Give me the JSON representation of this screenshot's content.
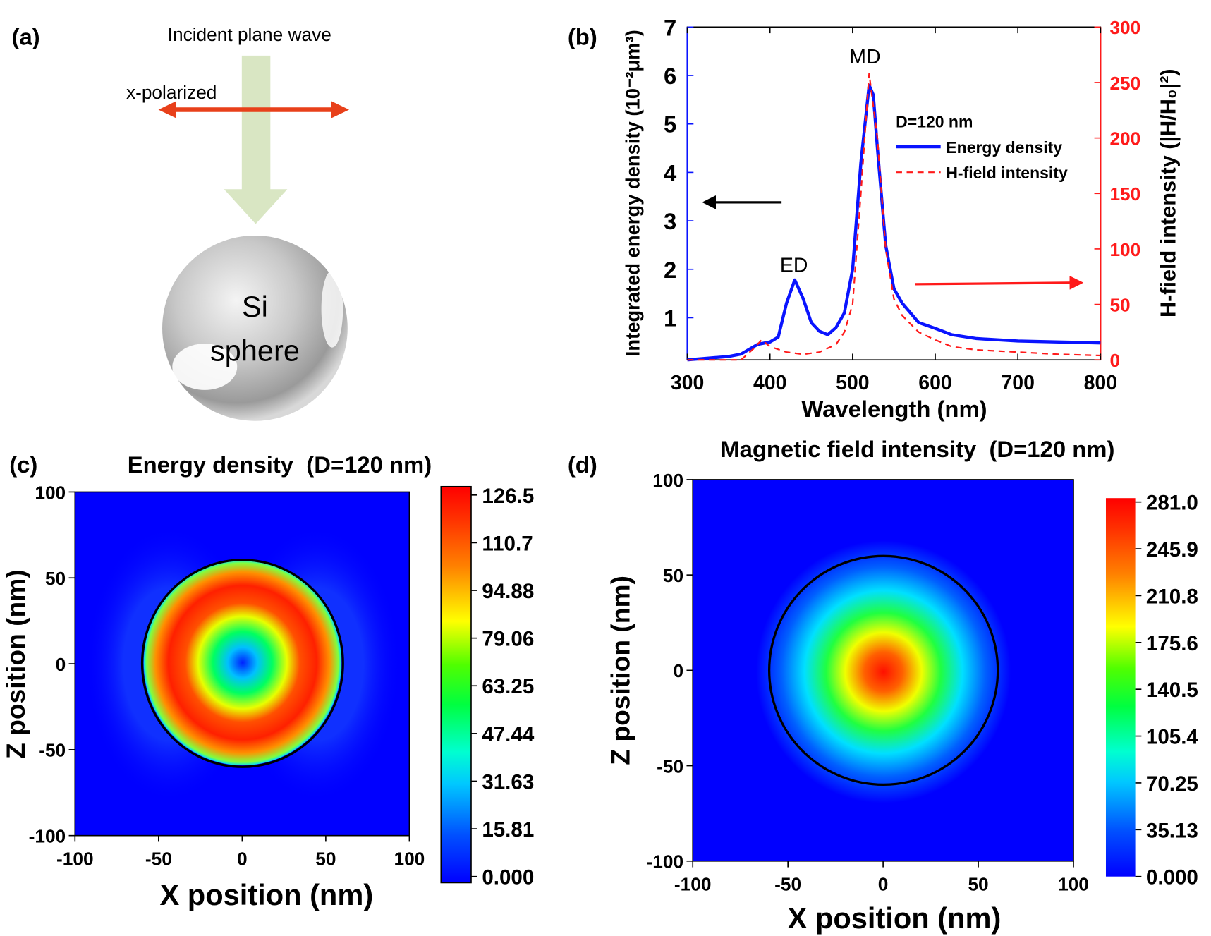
{
  "panel_a": {
    "label": "(a)",
    "incident": "Incident plane wave",
    "polarization": "x-polarized",
    "sphere_line1": "Si",
    "sphere_line2": "sphere"
  },
  "chart_data": [
    {
      "panel": "(b)",
      "type": "line",
      "xlabel": "Wavelength (nm)",
      "ylabel": "Integrated energy density (10⁻²μm³)",
      "y2label": "H-field intensity (|H/H₀|²)",
      "xlim": [
        300,
        800
      ],
      "ylim": [
        0.13,
        7
      ],
      "y2lim": [
        0,
        300
      ],
      "xticks": [
        "300",
        "400",
        "500",
        "600",
        "700",
        "800"
      ],
      "yticks": [
        "1",
        "2",
        "3",
        "4",
        "5",
        "6",
        "7"
      ],
      "y2ticks": [
        "0",
        "50",
        "100",
        "150",
        "200",
        "250",
        "300"
      ],
      "legend_title": "D=120 nm",
      "legend_position": "right",
      "annotations": [
        "ED",
        "MD"
      ],
      "series": [
        {
          "name": "Energy density",
          "axis": "left",
          "color": "#0a14ff",
          "x": [
            300,
            350,
            365,
            385,
            400,
            410,
            420,
            430,
            440,
            450,
            460,
            470,
            480,
            490,
            500,
            510,
            520,
            525,
            530,
            540,
            550,
            560,
            580,
            600,
            620,
            650,
            700,
            750,
            800
          ],
          "y": [
            0.13,
            0.2,
            0.25,
            0.45,
            0.5,
            0.6,
            1.3,
            1.78,
            1.4,
            0.9,
            0.72,
            0.65,
            0.8,
            1.1,
            2.0,
            4.2,
            5.8,
            5.6,
            4.5,
            2.5,
            1.6,
            1.3,
            0.9,
            0.78,
            0.65,
            0.57,
            0.52,
            0.5,
            0.48
          ]
        },
        {
          "name": "H-field intensity",
          "axis": "right",
          "color": "#ff1a1a",
          "x": [
            300,
            365,
            380,
            390,
            400,
            420,
            440,
            460,
            480,
            490,
            500,
            510,
            520,
            530,
            540,
            550,
            560,
            580,
            600,
            620,
            650,
            700,
            750,
            800
          ],
          "y": [
            0,
            0,
            10,
            18,
            12,
            7,
            5,
            7,
            14,
            25,
            50,
            150,
            258,
            200,
            100,
            55,
            40,
            25,
            18,
            12,
            9,
            7,
            5,
            4
          ]
        }
      ]
    },
    {
      "panel": "(c)",
      "type": "heatmap",
      "title": "Energy density  (D=120 nm)",
      "xlabel": "X position (nm)",
      "ylabel": "Z position (nm)",
      "xlim": [
        -100,
        100
      ],
      "ylim": [
        -100,
        100
      ],
      "xticks": [
        "-100",
        "-50",
        "0",
        "50",
        "100"
      ],
      "yticks": [
        "-100",
        "-50",
        "0",
        "50",
        "100"
      ],
      "colorbar": [
        "0.000",
        "15.81",
        "31.63",
        "47.44",
        "63.25",
        "79.06",
        "94.88",
        "110.7",
        "126.5"
      ],
      "sphere_radius_nm": 60
    },
    {
      "panel": "(d)",
      "type": "heatmap",
      "title": "Magnetic field intensity  (D=120 nm)",
      "xlabel": "X position (nm)",
      "ylabel": "Z position (nm)",
      "xlim": [
        -100,
        100
      ],
      "ylim": [
        -100,
        100
      ],
      "xticks": [
        "-100",
        "-50",
        "0",
        "50",
        "100"
      ],
      "yticks": [
        "-100",
        "-50",
        "0",
        "50",
        "100"
      ],
      "colorbar": [
        "0.000",
        "35.13",
        "70.25",
        "105.4",
        "140.5",
        "175.6",
        "210.8",
        "245.9",
        "281.0"
      ],
      "sphere_radius_nm": 60
    }
  ]
}
